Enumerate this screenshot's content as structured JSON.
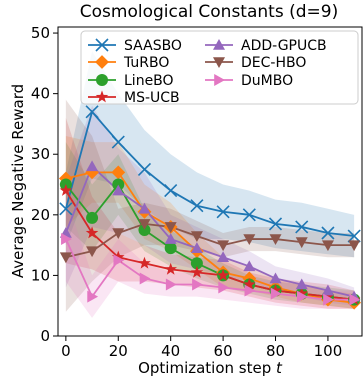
{
  "chart_data": {
    "type": "line",
    "title": "Cosmological Constants (d=9)",
    "xlabel": "Optimization step",
    "xlabel_var": "t",
    "ylabel": "Average Negative Reward",
    "xlim": [
      -3,
      113
    ],
    "ylim": [
      0,
      51
    ],
    "xticks": [
      0,
      20,
      40,
      60,
      80,
      100
    ],
    "yticks": [
      0,
      10,
      20,
      30,
      40,
      50
    ],
    "grid": false,
    "legend_position": "top",
    "x": [
      0,
      10,
      20,
      30,
      40,
      50,
      60,
      70,
      80,
      90,
      100,
      110
    ],
    "series": [
      {
        "name": "SAASBO",
        "color": "#1f77b4",
        "marker": "x",
        "values": [
          21,
          37,
          32,
          27.5,
          24,
          21.5,
          20.5,
          20,
          18.5,
          18,
          17,
          16.5
        ],
        "lower": [
          15,
          26,
          25,
          21,
          18,
          16,
          16,
          15.5,
          14.5,
          14,
          13.5,
          13
        ],
        "upper": [
          27,
          47,
          40,
          34,
          30,
          27,
          25,
          24,
          22.5,
          22,
          21,
          20
        ]
      },
      {
        "name": "TuRBO",
        "color": "#ff7f0e",
        "marker": "D",
        "values": [
          26,
          27,
          27,
          20.5,
          18,
          14,
          10.5,
          9.5,
          8,
          7,
          6,
          5.5
        ],
        "lower": [
          18,
          22,
          22,
          16,
          14,
          11,
          8,
          7.5,
          6.5,
          5.5,
          5,
          4.5
        ],
        "upper": [
          33,
          32,
          32,
          25,
          22,
          17,
          13,
          11.5,
          9.5,
          8.5,
          7.5,
          7
        ]
      },
      {
        "name": "LineBO",
        "color": "#2ca02c",
        "marker": "o",
        "values": [
          25,
          19.5,
          25,
          17.5,
          14.5,
          12,
          10,
          8.5,
          7.5,
          7,
          6.5,
          6
        ],
        "lower": [
          18,
          14,
          20,
          14,
          11.5,
          9.5,
          8,
          7,
          6,
          5.5,
          5,
          4.5
        ],
        "upper": [
          32,
          25,
          30,
          21,
          17.5,
          14.5,
          12,
          10,
          9,
          8.5,
          8,
          7.5
        ]
      },
      {
        "name": "MS-UCB",
        "color": "#d62728",
        "marker": "*",
        "values": [
          24,
          17,
          13,
          12,
          11,
          10.5,
          10,
          8.5,
          7.5,
          7,
          6.5,
          6
        ],
        "lower": [
          12,
          11,
          9,
          9,
          8.5,
          8,
          7.5,
          6.5,
          5.5,
          5,
          4.5,
          4.5
        ],
        "upper": [
          36,
          23,
          17,
          15,
          13.5,
          13,
          12.5,
          10.5,
          9.5,
          9,
          8.5,
          7.5
        ]
      },
      {
        "name": "ADD-GPUCB",
        "color": "#9467bd",
        "marker": "^",
        "values": [
          17,
          28,
          24,
          21,
          16,
          14.5,
          13,
          11.5,
          9.5,
          8.5,
          7.5,
          6.5
        ],
        "lower": [
          8,
          18,
          17,
          15,
          12,
          11,
          10,
          9,
          7.5,
          6.5,
          5.5,
          5
        ],
        "upper": [
          26,
          38,
          31,
          27,
          20,
          18,
          16,
          14,
          11.5,
          10.5,
          9.5,
          8
        ]
      },
      {
        "name": "DEC-HBO",
        "color": "#8c564b",
        "marker": "v",
        "values": [
          13,
          14,
          17,
          18.5,
          18,
          16.5,
          15,
          16,
          16,
          15.5,
          15,
          15
        ],
        "lower": [
          4,
          9,
          13,
          15,
          15,
          14,
          13,
          14,
          14,
          13.5,
          13,
          13
        ],
        "upper": [
          39,
          33,
          21,
          22,
          21,
          19,
          17,
          18,
          18,
          17.5,
          17,
          17
        ]
      },
      {
        "name": "DuMBO",
        "color": "#e377c2",
        "marker": ">",
        "values": [
          16,
          6.5,
          12.5,
          9.5,
          8.5,
          8.5,
          8,
          7.5,
          7,
          6.5,
          6,
          6
        ],
        "lower": [
          9,
          3,
          9,
          7,
          6.5,
          6.5,
          6,
          5.5,
          5,
          4.5,
          4.5,
          4.5
        ],
        "upper": [
          23,
          10,
          16,
          12,
          10.5,
          10.5,
          10,
          9.5,
          9,
          8.5,
          7.5,
          7.5
        ]
      }
    ]
  }
}
